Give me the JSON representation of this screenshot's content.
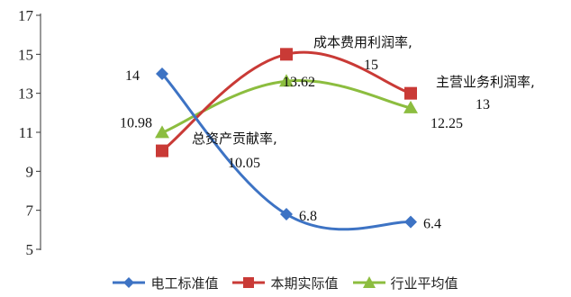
{
  "chart_data": {
    "type": "line",
    "categories": [
      "",
      "",
      ""
    ],
    "series": [
      {
        "name": "电工标准值",
        "values": [
          14,
          6.8,
          6.4
        ],
        "color": "#3d73c4",
        "marker": "diamond",
        "labels": [
          "14",
          "6.8",
          "6.4"
        ]
      },
      {
        "name": "本期实际值",
        "values": [
          10.05,
          15,
          13
        ],
        "color": "#c93a36",
        "marker": "square",
        "labels": [
          "",
          "",
          ""
        ]
      },
      {
        "name": "行业平均值",
        "values": [
          10.98,
          13.62,
          12.25
        ],
        "color": "#8cbd3f",
        "marker": "triangle",
        "labels": [
          "10.98",
          "13.62",
          "12.25"
        ]
      }
    ],
    "annotations": [
      {
        "category": "总资产贡献率,",
        "value": "10.05"
      },
      {
        "category": "成本费用利润率,",
        "value": "15"
      },
      {
        "category": "主营业务利润率,",
        "value": "13"
      }
    ],
    "ylim": [
      5,
      17
    ],
    "yticks": [
      5,
      7,
      9,
      11,
      13,
      15,
      17
    ],
    "grid": false,
    "legend_position": "bottom"
  }
}
